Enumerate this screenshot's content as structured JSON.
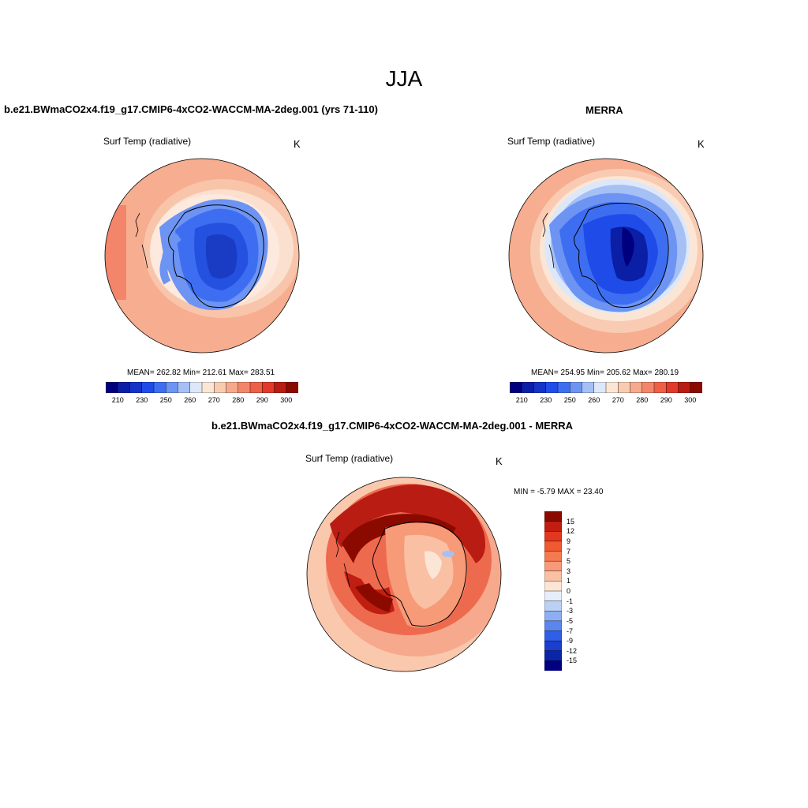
{
  "figure": {
    "title": "JJA"
  },
  "panels": [
    {
      "id": "model",
      "title": "b.e21.BWmaCO2x4.f19_g17.CMIP6-4xCO2-WACCM-MA-2deg.001 (yrs 71-110)",
      "variable": "Surf Temp (radiative)",
      "units": "K",
      "stats": "MEAN= 262.82   Min= 212.61   Max= 283.51",
      "colorbar": {
        "colors": [
          "#00007f",
          "#0b1fa6",
          "#1533c7",
          "#1f4ce8",
          "#3d6ef2",
          "#6d94f3",
          "#a6c0f5",
          "#dce8fa",
          "#fbe6d6",
          "#f9ccb2",
          "#f6a98c",
          "#f3866a",
          "#ee5f48",
          "#e2392a",
          "#b81c12",
          "#8b0a00"
        ],
        "tick_labels": [
          "210",
          "230",
          "250",
          "260",
          "270",
          "280",
          "290",
          "300"
        ]
      }
    },
    {
      "id": "obs",
      "title": "MERRA",
      "variable": "Surf Temp (radiative)",
      "units": "K",
      "stats": "MEAN= 254.95   Min= 205.62   Max= 280.19",
      "colorbar": {
        "colors": [
          "#00007f",
          "#0b1fa6",
          "#1533c7",
          "#1f4ce8",
          "#3d6ef2",
          "#6d94f3",
          "#a6c0f5",
          "#dce8fa",
          "#fbe6d6",
          "#f9ccb2",
          "#f6a98c",
          "#f3866a",
          "#ee5f48",
          "#e2392a",
          "#b81c12",
          "#8b0a00"
        ],
        "tick_labels": [
          "210",
          "230",
          "250",
          "260",
          "270",
          "280",
          "290",
          "300"
        ]
      }
    },
    {
      "id": "diff",
      "title": "b.e21.BWmaCO2x4.f19_g17.CMIP6-4xCO2-WACCM-MA-2deg.001 - MERRA",
      "variable": "Surf Temp (radiative)",
      "units": "K",
      "stats": "MIN =  -5.79 MAX =  23.40",
      "colorbar": {
        "colors": [
          "#8b0a00",
          "#c01e10",
          "#e3371e",
          "#f05a30",
          "#f47a52",
          "#f79a78",
          "#f9c0a4",
          "#fbe6d6",
          "#e6eefb",
          "#bcd0f6",
          "#8eaef3",
          "#5b86ee",
          "#2f5fe6",
          "#1a3fcf",
          "#0b25a8",
          "#00007f"
        ],
        "tick_labels": [
          "15",
          "12",
          "9",
          "7",
          "5",
          "3",
          "1",
          "0",
          "-1",
          "-3",
          "-5",
          "-7",
          "-9",
          "-12",
          "-15"
        ]
      }
    }
  ]
}
